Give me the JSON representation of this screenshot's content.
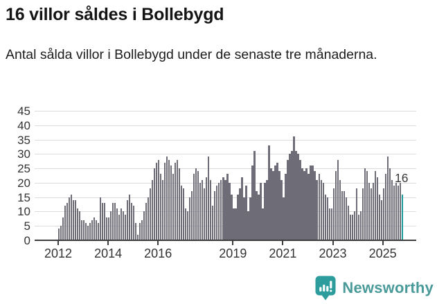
{
  "header": {
    "title": "16 villor såldes i Bollebygd",
    "subtitle": "Antal sålda villor i Bollebygd under de senaste tre månaderna."
  },
  "chart_data": {
    "type": "bar",
    "title": "16 villor såldes i Bollebygd",
    "subtitle": "Antal sålda villor i Bollebygd under de senaste tre månaderna.",
    "xlabel": "",
    "ylabel": "",
    "ylim": [
      0,
      45
    ],
    "grid": true,
    "legend": "none",
    "x_freq": "monthly",
    "x_start": "2012-01",
    "x_end": "2025-10",
    "y_ticks": [
      0,
      5,
      10,
      15,
      20,
      25,
      30,
      35,
      40,
      45
    ],
    "x_ticks": [
      {
        "label": "2012",
        "index": 0
      },
      {
        "label": "2014",
        "index": 24
      },
      {
        "label": "2016",
        "index": 48
      },
      {
        "label": "2019",
        "index": 84
      },
      {
        "label": "2021",
        "index": 108
      },
      {
        "label": "2023",
        "index": 132
      },
      {
        "label": "2025",
        "index": 156
      }
    ],
    "values": [
      4,
      5,
      8,
      12,
      13,
      15,
      16,
      14,
      14,
      11,
      10,
      7,
      7,
      6,
      5,
      6,
      7,
      8,
      7,
      6,
      15,
      13,
      13,
      8,
      8,
      10,
      13,
      13,
      11,
      9,
      11,
      10,
      9,
      14,
      16,
      13,
      12,
      6,
      2,
      6,
      7,
      10,
      13,
      15,
      18,
      21,
      25,
      27,
      28,
      23,
      21,
      27,
      29,
      28,
      26,
      23,
      27,
      28,
      25,
      19,
      18,
      11,
      10,
      15,
      17,
      23,
      25,
      24,
      20,
      21,
      18,
      22,
      29,
      21,
      12,
      17,
      19,
      20,
      21,
      22,
      21,
      23,
      20,
      16,
      11,
      11,
      16,
      18,
      22,
      15,
      19,
      10,
      15,
      26,
      31,
      17,
      16,
      20,
      11,
      20,
      21,
      33,
      25,
      24,
      26,
      27,
      24,
      21,
      15,
      23,
      28,
      30,
      31,
      36,
      31,
      30,
      28,
      25,
      24,
      25,
      23,
      26,
      26,
      24,
      21,
      23,
      21,
      20,
      16,
      15,
      11,
      11,
      18,
      24,
      28,
      21,
      17,
      17,
      15,
      12,
      9,
      9,
      10,
      18,
      9,
      10,
      18,
      25,
      24,
      20,
      18,
      20,
      24,
      22,
      16,
      14,
      18,
      23,
      29,
      25,
      21,
      19,
      20,
      19,
      20,
      16
    ],
    "highlight_last": true,
    "last_value_label": "16",
    "bar_color": "#6e6d77",
    "highlight_color": "#1d9a9a",
    "axis_color": "#3d3d3d",
    "grid_color": "#dcdcdc",
    "label_color": "#333333"
  },
  "footer": {
    "brand": "Newsworthy",
    "brand_color": "#4a9a9a",
    "icon": "newsworthy-pin-icon",
    "icon_color": "#2d9c9c"
  }
}
